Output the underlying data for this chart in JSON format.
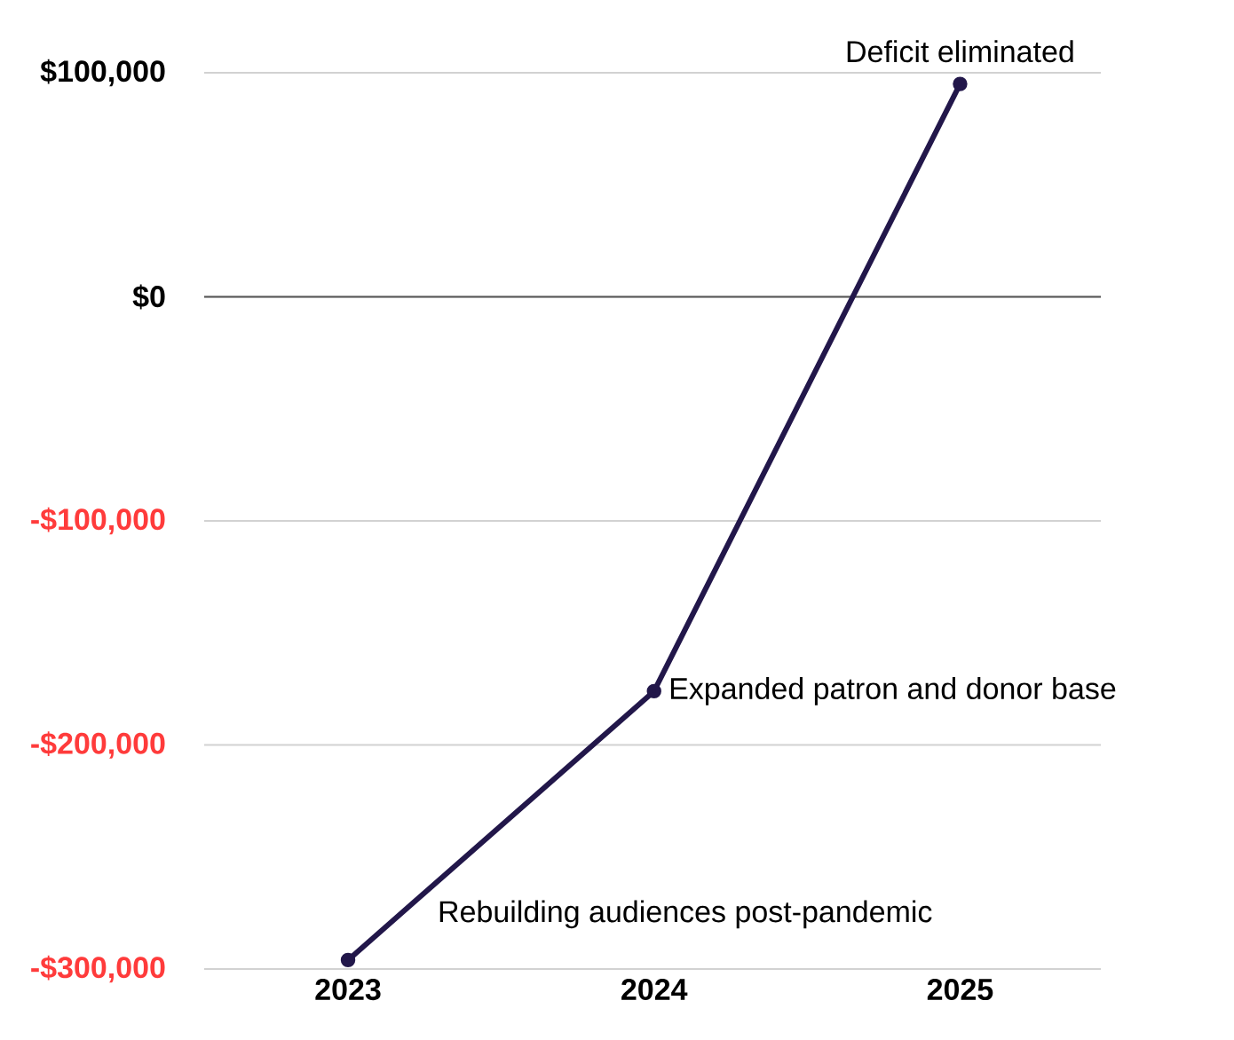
{
  "chart_data": {
    "type": "line",
    "categories": [
      "2023",
      "2024",
      "2025"
    ],
    "series": [
      {
        "color": "#22174a",
        "values": [
          -296000,
          -176000,
          95000
        ]
      }
    ],
    "ylim": [
      -300000,
      100000
    ],
    "yticks": [
      {
        "value": -300000,
        "label": "-$300,000"
      },
      {
        "value": -200000,
        "label": "-$200,000"
      },
      {
        "value": -100000,
        "label": "-$100,000"
      },
      {
        "value": 0,
        "label": "$0"
      },
      {
        "value": 100000,
        "label": "$100,000"
      }
    ],
    "grid": "y",
    "marker": "circle",
    "line_style": "solid",
    "ref_lines": [
      {
        "axis": "y",
        "value": 0,
        "color": "#555555"
      }
    ],
    "annotations": [
      {
        "text": "Deficit eliminated",
        "x": "2025",
        "y": 95000
      },
      {
        "text": "Expanded patron and donor base",
        "x": "2024",
        "y": -176000
      },
      "Rebuilding audiences post-pandemic"
    ]
  }
}
